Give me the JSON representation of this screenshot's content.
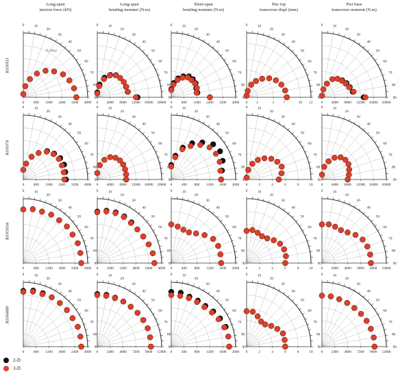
{
  "angles": [
    0,
    10,
    20,
    30,
    40,
    50,
    60,
    70,
    80,
    90
  ],
  "theta_label": "θ (deg)",
  "columns": [
    {
      "title_line1": "Long-span",
      "title_line2": "tension force (kN)"
    },
    {
      "title_line1": "Long-span",
      "title_line2": "bending momnet (N.m)"
    },
    {
      "title_line1": "Short-span",
      "title_line2": "bending momnet (N.m)"
    },
    {
      "title_line1": "Pier top",
      "title_line2": "transverse displ (mm)"
    },
    {
      "title_line1": "Pier base",
      "title_line2": "transverse moment (N.m)"
    }
  ],
  "rows": [
    "RSN953",
    "RSN978",
    "RSN3934",
    "RSN6889"
  ],
  "legend": [
    {
      "label": "2-D",
      "color": "#111111"
    },
    {
      "label": "3-D",
      "color": "#d9412b"
    }
  ],
  "colors": {
    "series_2d": "#111111",
    "series_3d": "#d9412b",
    "grid": "#bdbdbd",
    "axis": "#333333"
  },
  "chart_data": [
    {
      "type": "scatter",
      "polar": true,
      "row": "RSN953",
      "column": "Long-span tension force (kN)",
      "ticks": [
        0,
        800,
        1600,
        2400,
        3200,
        4000
      ],
      "rmax": 4000,
      "theta_ticks": [
        0,
        10,
        20,
        30,
        40,
        50,
        60,
        70,
        80,
        90
      ],
      "series": [
        {
          "name": "2-D",
          "values": [
            200,
            700,
            1200,
            1700,
            2150,
            2500,
            2850,
            3050,
            3200,
            3300
          ]
        },
        {
          "name": "3-D",
          "values": [
            200,
            700,
            1200,
            1700,
            2150,
            2500,
            2850,
            3050,
            3200,
            3300
          ]
        }
      ]
    },
    {
      "type": "scatter",
      "polar": true,
      "row": "RSN953",
      "column": "Long-span bending momnet (N.m)",
      "ticks": [
        0,
        4000,
        8000,
        12000,
        16000,
        20000
      ],
      "rmax": 20000,
      "theta_ticks": [
        0,
        10,
        20,
        30,
        40,
        50,
        60,
        70,
        80,
        90
      ],
      "series": [
        {
          "name": "2-D",
          "values": [
            1500,
            4000,
            6500,
            8000,
            9000,
            9300,
            9500,
            9500,
            9600,
            12500
          ]
        },
        {
          "name": "3-D",
          "values": [
            1200,
            3500,
            6000,
            7800,
            8900,
            9300,
            9500,
            9600,
            9700,
            12000
          ]
        }
      ]
    },
    {
      "type": "scatter",
      "polar": true,
      "row": "RSN953",
      "column": "Short-span bending momnet (N.m)",
      "ticks": [
        0,
        800,
        1600,
        2400,
        3200,
        4000
      ],
      "rmax": 4000,
      "theta_ticks": [
        0,
        10,
        20,
        30,
        40,
        50,
        60,
        70,
        80,
        90
      ],
      "series": [
        {
          "name": "2-D",
          "values": [
            500,
            900,
            1250,
            1500,
            1700,
            1750,
            1750,
            1650,
            1650,
            2400
          ]
        },
        {
          "name": "3-D",
          "values": [
            450,
            800,
            1150,
            1400,
            1600,
            1650,
            1700,
            1700,
            1600,
            2400
          ]
        }
      ]
    },
    {
      "type": "scatter",
      "polar": true,
      "row": "RSN953",
      "column": "Pier top transverse displ (mm)",
      "ticks": [
        0,
        2,
        5,
        7,
        10,
        12
      ],
      "rmax": 12,
      "theta_ticks": [
        0,
        10,
        20,
        30,
        40,
        50,
        60,
        70,
        80,
        90
      ],
      "series": [
        {
          "name": "2-D",
          "values": [
            0.3,
            1.2,
            2.5,
            3.5,
            4.5,
            5.5,
            6.3,
            6.9,
            7.3,
            7.5
          ]
        },
        {
          "name": "3-D",
          "values": [
            0.3,
            1.2,
            2.5,
            3.5,
            4.5,
            5.5,
            6.3,
            6.9,
            7.3,
            7.5
          ]
        }
      ]
    },
    {
      "type": "scatter",
      "polar": true,
      "row": "RSN953",
      "column": "Pier base transverse moment (N.m)",
      "ticks": [
        0,
        4000,
        8000,
        12000,
        16000,
        20000
      ],
      "rmax": 20000,
      "theta_ticks": [
        0,
        10,
        20,
        30,
        40,
        50,
        60,
        70,
        80,
        90
      ],
      "series": [
        {
          "name": "2-D",
          "values": [
            500,
            2500,
            4500,
            6500,
            7500,
            8200,
            8800,
            9200,
            9700,
            13000
          ]
        },
        {
          "name": "3-D",
          "values": [
            500,
            2500,
            4500,
            6500,
            7500,
            8000,
            8500,
            9000,
            10000,
            13500
          ]
        }
      ]
    },
    {
      "type": "scatter",
      "polar": true,
      "row": "RSN978",
      "column": "Long-span tension force (kN)",
      "ticks": [
        0,
        800,
        1600,
        2400,
        3200,
        4000
      ],
      "rmax": 4000,
      "theta_ticks": [
        0,
        10,
        20,
        30,
        40,
        50,
        60,
        70,
        80,
        90
      ],
      "series": [
        {
          "name": "2-D",
          "values": [
            600,
            1000,
            1500,
            1900,
            2300,
            2500,
            2650,
            2700,
            2650,
            2650
          ]
        },
        {
          "name": "3-D",
          "values": [
            600,
            1000,
            1500,
            1900,
            2250,
            2450,
            2550,
            2550,
            2550,
            2550
          ]
        }
      ]
    },
    {
      "type": "scatter",
      "polar": true,
      "row": "RSN978",
      "column": "Long-span bending momnet (N.m)",
      "ticks": [
        0,
        4000,
        8000,
        12000,
        16000,
        20000
      ],
      "rmax": 20000,
      "theta_ticks": [
        0,
        10,
        20,
        30,
        40,
        50,
        60,
        70,
        80,
        90
      ],
      "series": [
        {
          "name": "2-D",
          "values": [
            2000,
            4500,
            6500,
            8000,
            8800,
            9200,
            9300,
            9200,
            9100,
            9000
          ]
        },
        {
          "name": "3-D",
          "values": [
            2000,
            4500,
            6500,
            8000,
            8800,
            9200,
            9300,
            9200,
            9100,
            9000
          ]
        }
      ]
    },
    {
      "type": "scatter",
      "polar": true,
      "row": "RSN978",
      "column": "Short-span bending momnet (N.m)",
      "ticks": [
        0,
        400,
        800,
        1200,
        1600,
        2000
      ],
      "rmax": 2000,
      "theta_ticks": [
        0,
        10,
        20,
        30,
        40,
        50,
        60,
        70,
        80,
        90
      ],
      "series": [
        {
          "name": "2-D",
          "values": [
            450,
            750,
            1050,
            1300,
            1500,
            1700,
            1750,
            1700,
            1600,
            1550
          ]
        },
        {
          "name": "3-D",
          "values": [
            400,
            700,
            1000,
            1200,
            1400,
            1550,
            1600,
            1600,
            1550,
            1550
          ]
        }
      ]
    },
    {
      "type": "scatter",
      "polar": true,
      "row": "RSN978",
      "column": "Pier top transverse displ (mm)",
      "ticks": [
        0,
        2,
        4,
        6,
        8,
        10
      ],
      "rmax": 10,
      "theta_ticks": [
        0,
        10,
        20,
        30,
        40,
        50,
        60,
        70,
        80,
        90
      ],
      "series": [
        {
          "name": "2-D",
          "values": [
            0.3,
            1.5,
            2.6,
            3.5,
            4.3,
            5.0,
            5.5,
            5.8,
            5.5,
            5.0
          ]
        },
        {
          "name": "3-D",
          "values": [
            0.3,
            1.5,
            2.6,
            3.5,
            4.3,
            5.0,
            5.5,
            5.8,
            5.5,
            5.0
          ]
        }
      ]
    },
    {
      "type": "scatter",
      "polar": true,
      "row": "RSN978",
      "column": "Pier base transverse moment (N.m)",
      "ticks": [
        0,
        4000,
        8000,
        12000,
        16000,
        20000
      ],
      "rmax": 20000,
      "theta_ticks": [
        0,
        10,
        20,
        30,
        40,
        50,
        60,
        70,
        80,
        90
      ],
      "series": [
        {
          "name": "2-D",
          "values": [
            1500,
            4000,
            6000,
            7800,
            9000,
            9500,
            9500,
            9000,
            8500,
            8000
          ]
        },
        {
          "name": "3-D",
          "values": [
            1500,
            4000,
            6000,
            7800,
            9000,
            9500,
            9500,
            9000,
            8500,
            8000
          ]
        }
      ]
    },
    {
      "type": "scatter",
      "polar": true,
      "row": "RSN3934",
      "column": "Long-span tension force (kN)",
      "ticks": [
        0,
        600,
        1200,
        1800,
        2400,
        3000
      ],
      "rmax": 3000,
      "theta_ticks": [
        0,
        10,
        20,
        30,
        40,
        50,
        60,
        70,
        80,
        90
      ],
      "series": [
        {
          "name": "2-D",
          "values": [
            2500,
            2550,
            2550,
            2600,
            2600,
            2650,
            2650,
            2700,
            2700,
            2700
          ]
        },
        {
          "name": "3-D",
          "values": [
            2500,
            2550,
            2550,
            2600,
            2600,
            2650,
            2650,
            2700,
            2700,
            2700
          ]
        }
      ]
    },
    {
      "type": "scatter",
      "polar": true,
      "row": "RSN3934",
      "column": "Long-span bending momnet (N.m)",
      "ticks": [
        0,
        1600,
        3200,
        4800,
        6400,
        8000
      ],
      "rmax": 8000,
      "theta_ticks": [
        0,
        10,
        20,
        30,
        40,
        50,
        60,
        70,
        80,
        90
      ],
      "series": [
        {
          "name": "2-D",
          "values": [
            6400,
            6600,
            6700,
            6700,
            6600,
            6500,
            6600,
            6800,
            7000,
            7100
          ]
        },
        {
          "name": "3-D",
          "values": [
            6300,
            6500,
            6600,
            6600,
            6500,
            6500,
            6600,
            6800,
            7000,
            7100
          ]
        }
      ]
    },
    {
      "type": "scatter",
      "polar": true,
      "row": "RSN3934",
      "column": "Short-span bending momnet (N.m)",
      "ticks": [
        0,
        400,
        800,
        1200,
        1600,
        2000
      ],
      "rmax": 2000,
      "theta_ticks": [
        0,
        10,
        20,
        30,
        40,
        50,
        60,
        70,
        80,
        90
      ],
      "series": [
        {
          "name": "2-D",
          "values": [
            1200,
            1150,
            1100,
            1100,
            1200,
            1350,
            1500,
            1550,
            1550,
            1550
          ]
        },
        {
          "name": "3-D",
          "values": [
            1200,
            1150,
            1100,
            1100,
            1200,
            1350,
            1500,
            1550,
            1550,
            1550
          ]
        }
      ]
    },
    {
      "type": "scatter",
      "polar": true,
      "row": "RSN3934",
      "column": "Pier top transverse displ (mm)",
      "ticks": [
        0,
        2,
        4,
        6,
        8,
        10
      ],
      "rmax": 10,
      "theta_ticks": [
        0,
        10,
        20,
        30,
        40,
        50,
        60,
        70,
        80,
        90
      ],
      "series": [
        {
          "name": "2-D",
          "values": [
            5.0,
            5.2,
            5.0,
            4.8,
            5.0,
            5.5,
            6.0,
            6.2,
            6.2,
            6.0
          ]
        },
        {
          "name": "3-D",
          "values": [
            5.0,
            5.2,
            5.0,
            4.8,
            5.0,
            5.5,
            6.0,
            6.2,
            6.2,
            6.0
          ]
        }
      ]
    },
    {
      "type": "scatter",
      "polar": true,
      "row": "RSN3934",
      "column": "Pier base transverse moment (N.m)",
      "ticks": [
        0,
        2000,
        4000,
        6000,
        8000,
        10000
      ],
      "rmax": 10000,
      "theta_ticks": [
        0,
        10,
        20,
        30,
        40,
        50,
        60,
        70,
        80,
        90
      ],
      "series": [
        {
          "name": "2-D",
          "values": [
            6000,
            6100,
            6000,
            5900,
            6200,
            6800,
            7300,
            7500,
            7600,
            7600
          ]
        },
        {
          "name": "3-D",
          "values": [
            6000,
            6100,
            6000,
            5900,
            6200,
            6800,
            7300,
            7500,
            7600,
            7600
          ]
        }
      ]
    },
    {
      "type": "scatter",
      "polar": true,
      "row": "RSN6889",
      "column": "Long-span tension force (kN)",
      "ticks": [
        0,
        600,
        1200,
        1800,
        2400,
        3000
      ],
      "rmax": 3000,
      "theta_ticks": [
        0,
        10,
        20,
        30,
        40,
        50,
        60,
        70,
        80,
        90
      ],
      "series": [
        {
          "name": "2-D",
          "values": [
            2600,
            2650,
            2650,
            2650,
            2650,
            2650,
            2650,
            2700,
            2700,
            2700
          ]
        },
        {
          "name": "3-D",
          "values": [
            2550,
            2600,
            2600,
            2650,
            2650,
            2650,
            2650,
            2700,
            2700,
            2700
          ]
        }
      ]
    },
    {
      "type": "scatter",
      "polar": true,
      "row": "RSN6889",
      "column": "Long-span bending momnet (N.m)",
      "ticks": [
        0,
        2400,
        4800,
        7200,
        9600,
        12000
      ],
      "rmax": 12000,
      "theta_ticks": [
        0,
        10,
        20,
        30,
        40,
        50,
        60,
        70,
        80,
        90
      ],
      "series": [
        {
          "name": "2-D",
          "values": [
            9800,
            9800,
            9700,
            9700,
            9700,
            9800,
            9900,
            10000,
            10000,
            10000
          ]
        },
        {
          "name": "3-D",
          "values": [
            9600,
            9600,
            9600,
            9700,
            9700,
            9800,
            9900,
            10000,
            10000,
            10000
          ]
        }
      ]
    },
    {
      "type": "scatter",
      "polar": true,
      "row": "RSN6889",
      "column": "Short-span bending momnet (N.m)",
      "ticks": [
        0,
        400,
        800,
        1200,
        1600,
        2000
      ],
      "rmax": 2000,
      "theta_ticks": [
        0,
        10,
        20,
        30,
        40,
        50,
        60,
        70,
        80,
        90
      ],
      "series": [
        {
          "name": "2-D",
          "values": [
            1700,
            1700,
            1650,
            1650,
            1650,
            1700,
            1750,
            1800,
            1800,
            1800
          ]
        },
        {
          "name": "3-D",
          "values": [
            1600,
            1600,
            1600,
            1600,
            1600,
            1650,
            1700,
            1750,
            1800,
            1800
          ]
        }
      ]
    },
    {
      "type": "scatter",
      "polar": true,
      "row": "RSN6889",
      "column": "Pier top transverse displ (mm)",
      "ticks": [
        0,
        2,
        4,
        6,
        8,
        10
      ],
      "rmax": 10,
      "theta_ticks": [
        0,
        10,
        20,
        30,
        40,
        50,
        60,
        70,
        80,
        90
      ],
      "series": [
        {
          "name": "2-D",
          "values": [
            5.5,
            5.5,
            5.0,
            4.5,
            4.5,
            5.0,
            5.5,
            6.0,
            6.0,
            6.0
          ]
        },
        {
          "name": "3-D",
          "values": [
            5.5,
            5.5,
            5.0,
            4.5,
            4.5,
            5.0,
            5.5,
            6.0,
            6.0,
            6.0
          ]
        }
      ]
    },
    {
      "type": "scatter",
      "polar": true,
      "row": "RSN6889",
      "column": "Pier base transverse moment (N.m)",
      "ticks": [
        0,
        2400,
        4800,
        7200,
        9600,
        12000
      ],
      "rmax": 12000,
      "theta_ticks": [
        0,
        10,
        20,
        30,
        40,
        50,
        60,
        70,
        80,
        90
      ],
      "series": [
        {
          "name": "2-D",
          "values": [
            9500,
            9500,
            9400,
            9400,
            9400,
            9500,
            9600,
            9700,
            9800,
            9800
          ]
        },
        {
          "name": "3-D",
          "values": [
            9500,
            9500,
            9400,
            9400,
            9400,
            9500,
            9600,
            9700,
            9800,
            9800
          ]
        }
      ]
    }
  ]
}
